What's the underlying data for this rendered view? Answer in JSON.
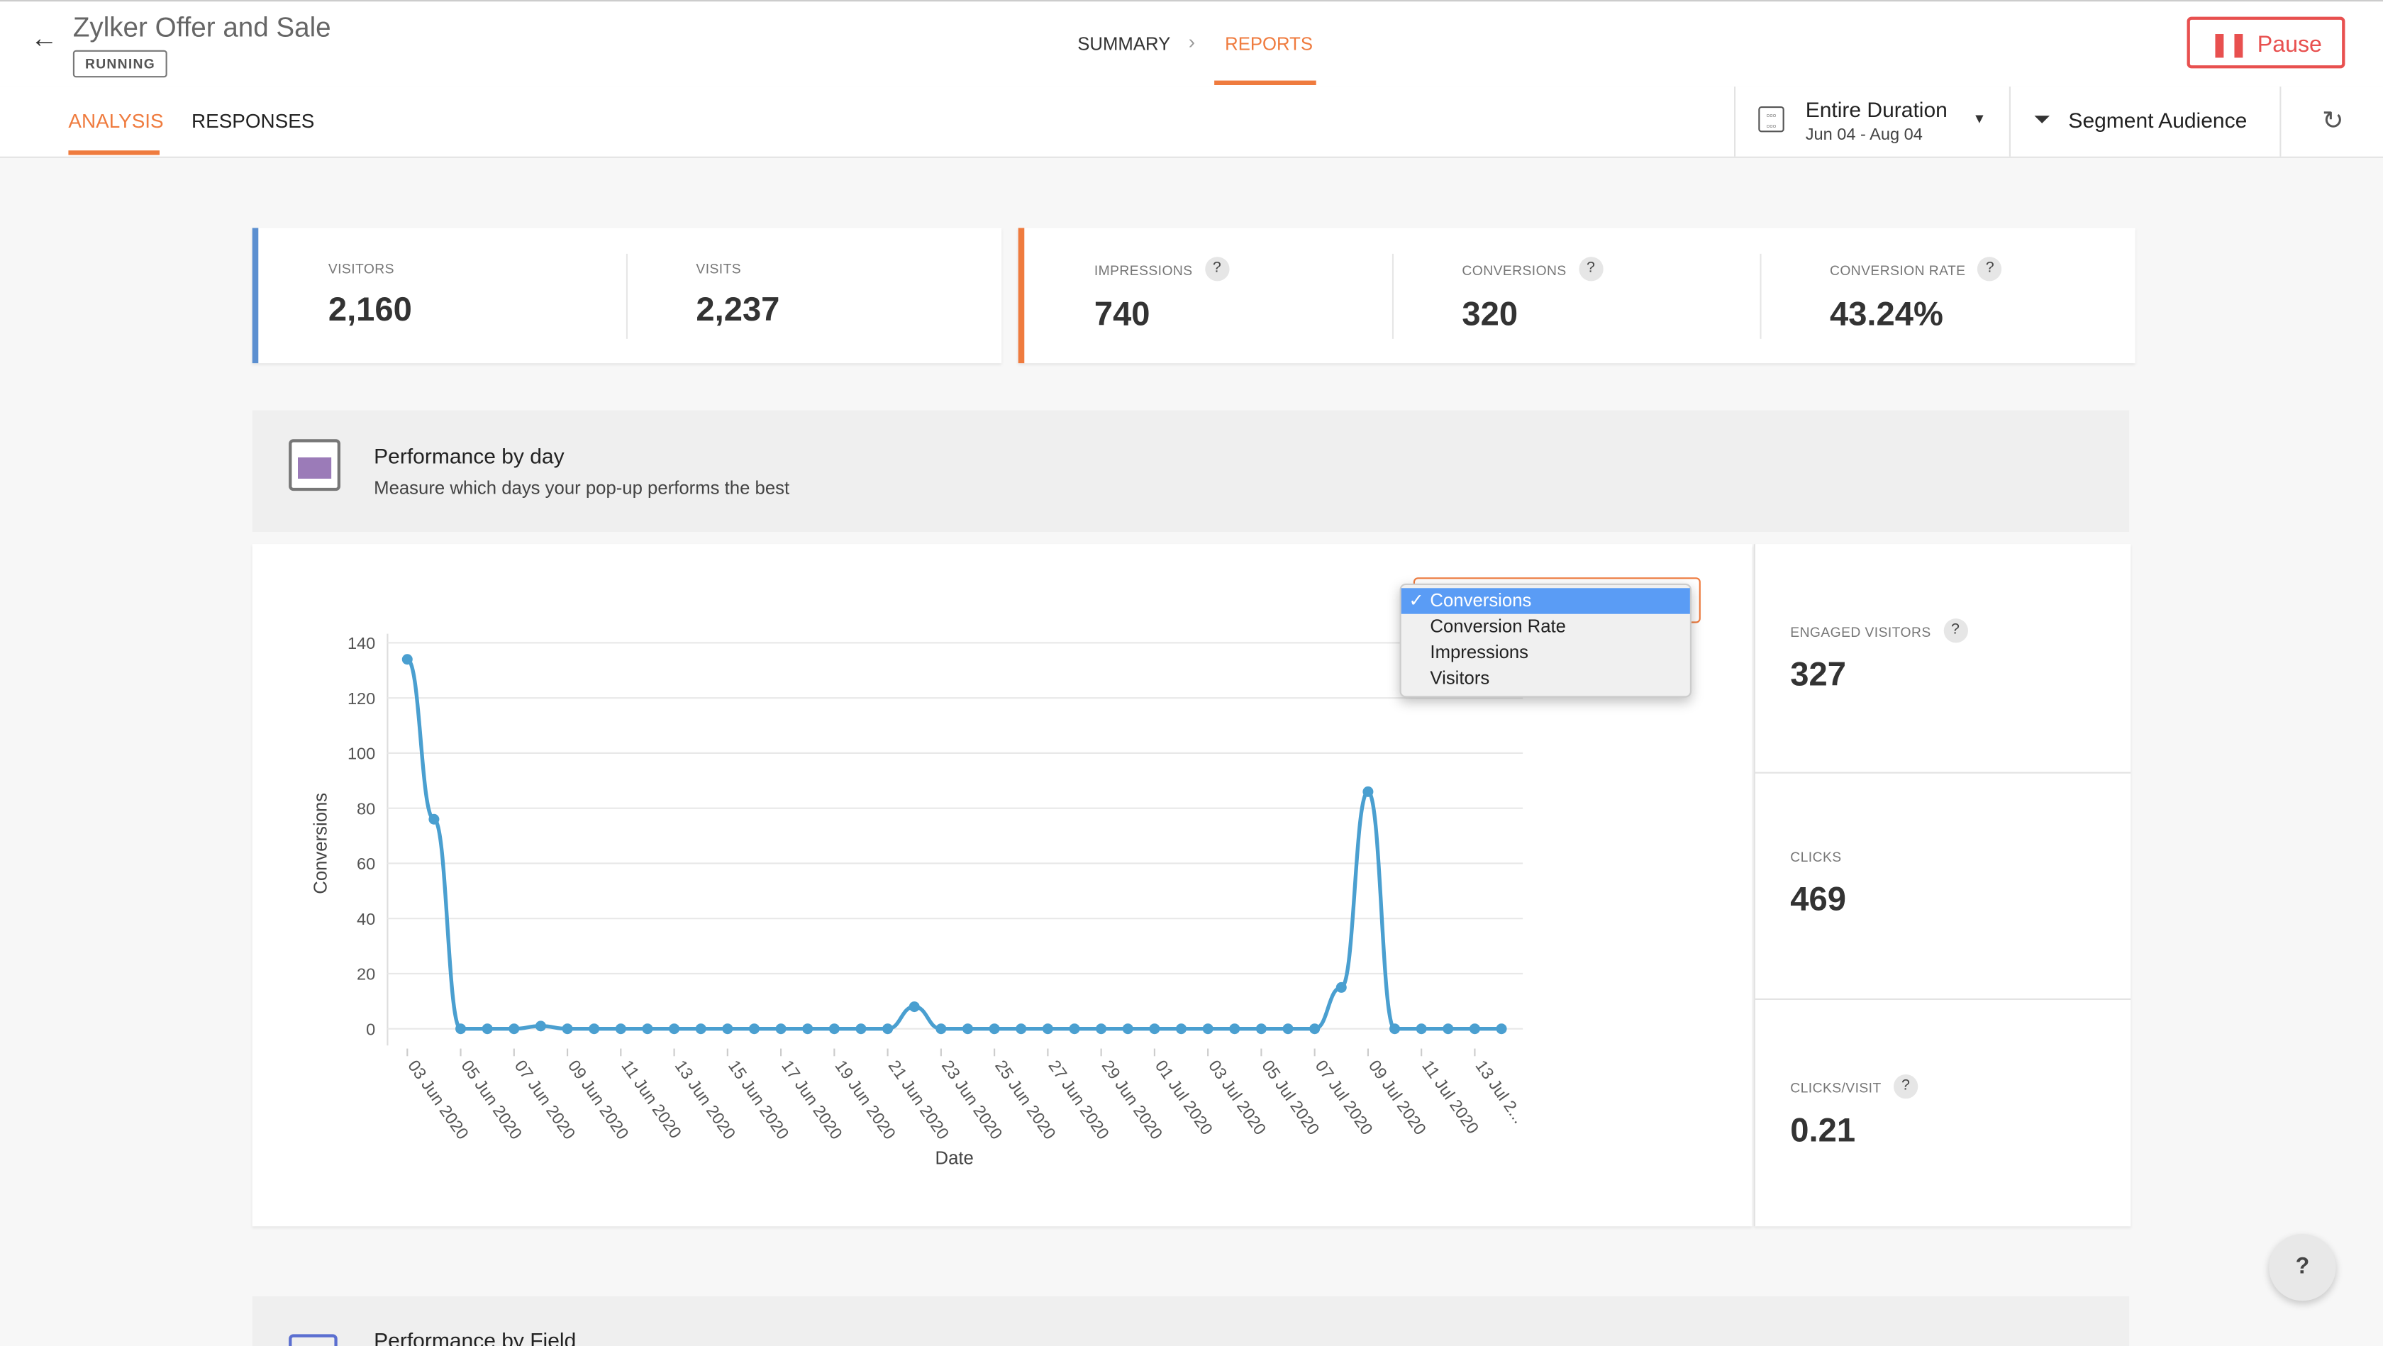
{
  "header": {
    "title": "Zylker Offer and Sale",
    "status": "RUNNING",
    "breadcrumb": [
      "SUMMARY",
      "REPORTS"
    ],
    "pause_label": "Pause"
  },
  "tabs": [
    {
      "label": "ANALYSIS",
      "active": true
    },
    {
      "label": "RESPONSES",
      "active": false
    }
  ],
  "date_filter": {
    "label": "Entire Duration",
    "range": "Jun 04 - Aug 04"
  },
  "segment_label": "Segment Audience",
  "stats_left": [
    {
      "label": "VISITORS",
      "value": "2,160"
    },
    {
      "label": "VISITS",
      "value": "2,237"
    }
  ],
  "stats_right": [
    {
      "label": "IMPRESSIONS",
      "value": "740",
      "help": "?"
    },
    {
      "label": "CONVERSIONS",
      "value": "320",
      "help": "?"
    },
    {
      "label": "CONVERSION RATE",
      "value": "43.24%",
      "help": "?"
    }
  ],
  "section": {
    "title": "Performance by day",
    "subtitle": "Measure which days your pop-up performs the best"
  },
  "metric_dropdown": {
    "options": [
      "Conversions",
      "Conversion Rate",
      "Impressions",
      "Visitors"
    ],
    "selected": "Conversions",
    "check": "✓"
  },
  "side_stats": [
    {
      "label": "ENGAGED VISITORS",
      "value": "327",
      "help": "?"
    },
    {
      "label": "CLICKS",
      "value": "469"
    },
    {
      "label": "CLICKS/VISIT",
      "value": "0.21",
      "help": "?"
    }
  ],
  "next_section": {
    "title": "Performance by Field"
  },
  "help_button": "?",
  "colors": {
    "accent": "#ef7b3e",
    "pause": "#e8504f",
    "line": "#4a9fd0",
    "left_bar": "#5b8fd0"
  },
  "chart_data": {
    "type": "line",
    "xlabel": "Date",
    "ylabel": "Conversions",
    "ylim": [
      0,
      140
    ],
    "yticks": [
      "0",
      "20",
      "40",
      "60",
      "80",
      "100",
      "120",
      "140"
    ],
    "xtick_labels": [
      "03 Jun 2020",
      "05 Jun 2020",
      "07 Jun 2020",
      "09 Jun 2020",
      "11 Jun 2020",
      "13 Jun 2020",
      "15 Jun 2020",
      "17 Jun 2020",
      "19 Jun 2020",
      "21 Jun 2020",
      "23 Jun 2020",
      "25 Jun 2020",
      "27 Jun 2020",
      "29 Jun 2020",
      "01 Jul 2020",
      "03 Jul 2020",
      "05 Jul 2020",
      "07 Jul 2020",
      "09 Jul 2020",
      "11 Jul 2020",
      "13 Jul 2..."
    ],
    "x_start": "03 Jun 2020",
    "values": [
      134,
      76,
      0,
      0,
      0,
      1,
      0,
      0,
      0,
      0,
      0,
      0,
      0,
      0,
      0,
      0,
      0,
      0,
      0,
      8,
      0,
      0,
      0,
      0,
      0,
      0,
      0,
      0,
      0,
      0,
      0,
      0,
      0,
      0,
      0,
      15,
      86,
      0,
      0,
      0,
      0,
      0
    ],
    "grid": true
  }
}
